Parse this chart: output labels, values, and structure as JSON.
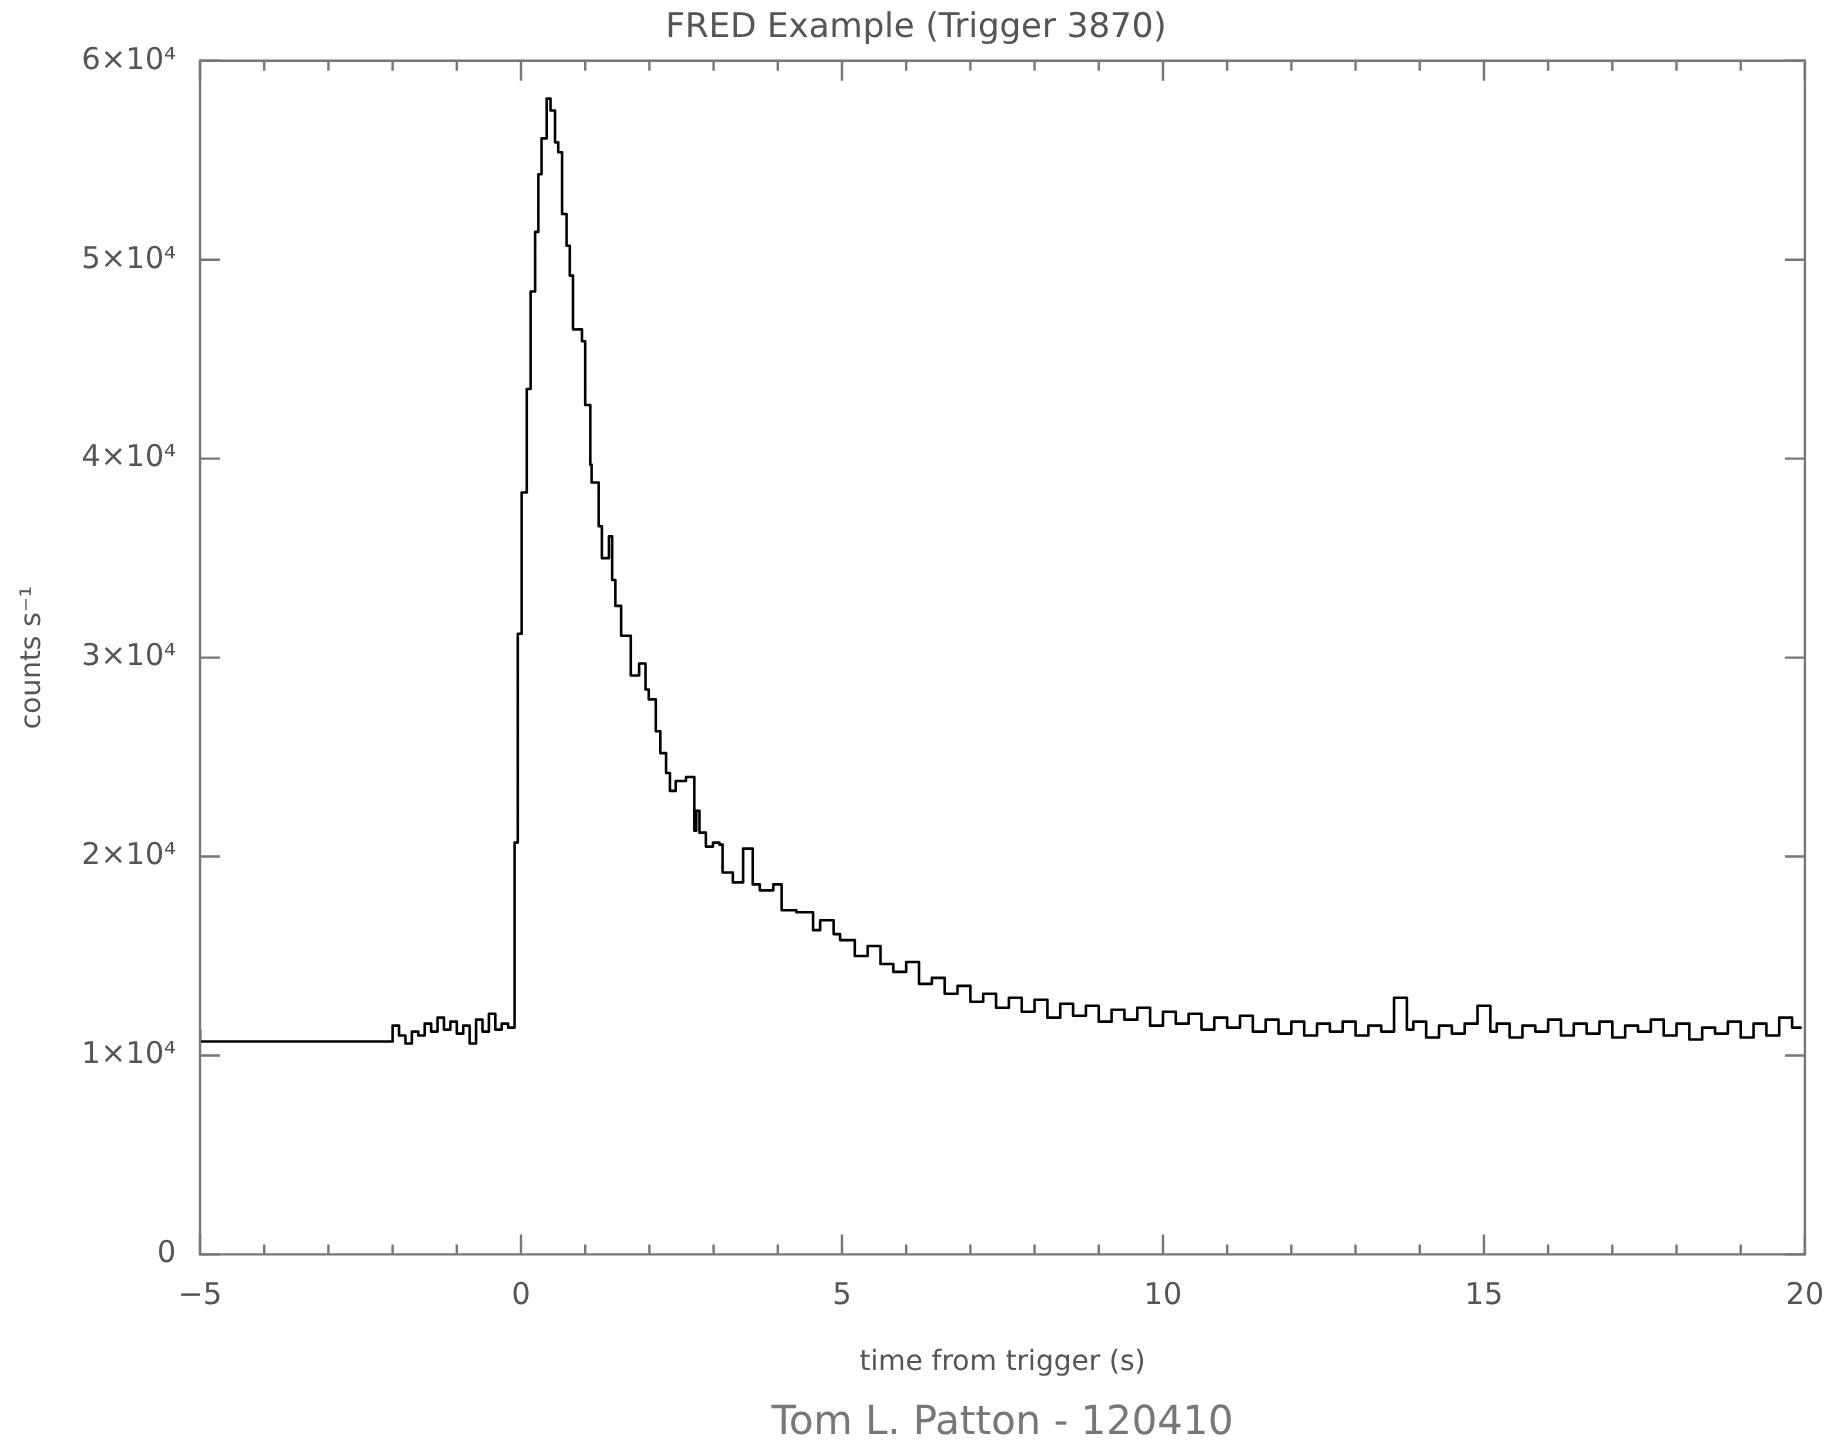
{
  "chart_data": {
    "type": "step",
    "title": "FRED Example (Trigger 3870)",
    "xlabel": "time from trigger (s)",
    "ylabel": "counts s⁻¹",
    "annotations": [
      "Tom L. Patton - 120410"
    ],
    "x": [
      -5,
      -2,
      -1.9,
      -1.8,
      -1.7,
      -1.6,
      -1.5,
      -1.4,
      -1.3,
      -1.2,
      -1.1,
      -1.0,
      -0.9,
      -0.8,
      -0.7,
      -0.6,
      -0.5,
      -0.4,
      -0.3,
      -0.2,
      -0.1,
      -0.05,
      0.01,
      0.09,
      0.15,
      0.22,
      0.27,
      0.32,
      0.4,
      0.46,
      0.53,
      0.58,
      0.64,
      0.71,
      0.76,
      0.81,
      0.95,
      1.0,
      1.08,
      1.1,
      1.21,
      1.26,
      1.37,
      1.42,
      1.47,
      1.56,
      1.71,
      1.84,
      1.94,
      1.99,
      2.1,
      2.17,
      2.26,
      2.32,
      2.41,
      2.57,
      2.7,
      2.73,
      2.78,
      2.88,
      2.99,
      3.09,
      3.14,
      3.3,
      3.46,
      3.61,
      3.72,
      3.93,
      4.06,
      4.29,
      4.55,
      4.66,
      4.87,
      4.97,
      5.2,
      5.4,
      5.6,
      5.8,
      6.0,
      6.2,
      6.4,
      6.6,
      6.8,
      7.0,
      7.2,
      7.4,
      7.6,
      7.8,
      8.0,
      8.2,
      8.4,
      8.6,
      8.8,
      9.0,
      9.2,
      9.4,
      9.6,
      9.8,
      10.0,
      10.2,
      10.4,
      10.6,
      10.8,
      11.0,
      11.2,
      11.4,
      11.6,
      11.8,
      12.0,
      12.2,
      12.4,
      12.6,
      12.8,
      13.0,
      13.2,
      13.4,
      13.6,
      13.8,
      13.9,
      14.1,
      14.3,
      14.5,
      14.7,
      14.9,
      15.1,
      15.2,
      15.4,
      15.6,
      15.8,
      16.0,
      16.2,
      16.4,
      16.6,
      16.8,
      17.0,
      17.2,
      17.4,
      17.6,
      17.8,
      18.0,
      18.2,
      18.4,
      18.6,
      18.8,
      19.0,
      19.2,
      19.4,
      19.6,
      19.8,
      19.95
    ],
    "values": [
      11300,
      10700,
      11500,
      11000,
      10600,
      11200,
      11000,
      11600,
      11200,
      11900,
      11300,
      11700,
      11100,
      11500,
      10600,
      11800,
      11200,
      12100,
      11300,
      11600,
      11400,
      20700,
      31200,
      38300,
      43500,
      48400,
      51400,
      54300,
      56100,
      58100,
      57500,
      55900,
      55400,
      52300,
      50700,
      49200,
      46500,
      45900,
      42700,
      39700,
      38800,
      36600,
      35000,
      36100,
      33900,
      32600,
      31100,
      29100,
      29700,
      28400,
      27900,
      26300,
      25200,
      24200,
      23300,
      23800,
      24000,
      21300,
      22300,
      21200,
      20500,
      20700,
      20600,
      19200,
      18700,
      20400,
      18600,
      18300,
      18600,
      17300,
      17200,
      16300,
      16800,
      16100,
      15800,
      15000,
      15500,
      14600,
      14200,
      14700,
      13600,
      13900,
      13100,
      13500,
      12700,
      13100,
      12400,
      12900,
      12200,
      12800,
      11900,
      12600,
      12000,
      12500,
      11700,
      12300,
      11800,
      12400,
      11500,
      12200,
      11600,
      12100,
      11300,
      11900,
      11400,
      12000,
      11200,
      11800,
      11100,
      11700,
      11000,
      11600,
      11200,
      11700,
      11000,
      11500,
      11200,
      12900,
      11300,
      11700,
      10900,
      11500,
      11100,
      11600,
      12500,
      11200,
      11600,
      10900,
      11500,
      11200,
      11800,
      11000,
      11600,
      11100,
      11700,
      10900,
      11500,
      11200,
      11800,
      11000,
      11600,
      10800,
      11400,
      11100,
      11700,
      10900,
      11600,
      11000,
      11900,
      11400
    ],
    "color": "#000000",
    "xlim": [
      -5,
      20
    ],
    "ylim": [
      0,
      60000
    ],
    "xticks": [
      -5,
      {
        "value": -4,
        "label": null
      },
      {
        "value": -3,
        "label": null
      },
      {
        "value": -2,
        "label": null
      },
      {
        "value": -1,
        "label": null
      },
      0,
      {
        "value": 1,
        "label": null
      },
      {
        "value": 2,
        "label": null
      },
      {
        "value": 3,
        "label": null
      },
      {
        "value": 4,
        "label": null
      },
      5,
      {
        "value": 6,
        "label": null
      },
      {
        "value": 7,
        "label": null
      },
      {
        "value": 8,
        "label": null
      },
      {
        "value": 9,
        "label": null
      },
      10,
      {
        "value": 11,
        "label": null
      },
      {
        "value": 12,
        "label": null
      },
      {
        "value": 13,
        "label": null
      },
      {
        "value": 14,
        "label": null
      },
      15,
      {
        "value": 16,
        "label": null
      },
      {
        "value": 17,
        "label": null
      },
      {
        "value": 18,
        "label": null
      },
      {
        "value": 19,
        "label": null
      },
      20
    ],
    "yticks": [
      0,
      {
        "value": 10000,
        "label": "1×10⁴"
      },
      {
        "value": 20000,
        "label": "2×10⁴"
      },
      {
        "value": 30000,
        "label": "3×10⁴"
      },
      {
        "value": 40000,
        "label": "4×10⁴"
      },
      {
        "value": 50000,
        "label": "5×10⁴"
      },
      {
        "value": 60000,
        "label": "6×10⁴"
      }
    ],
    "grid": false,
    "legend": false
  }
}
